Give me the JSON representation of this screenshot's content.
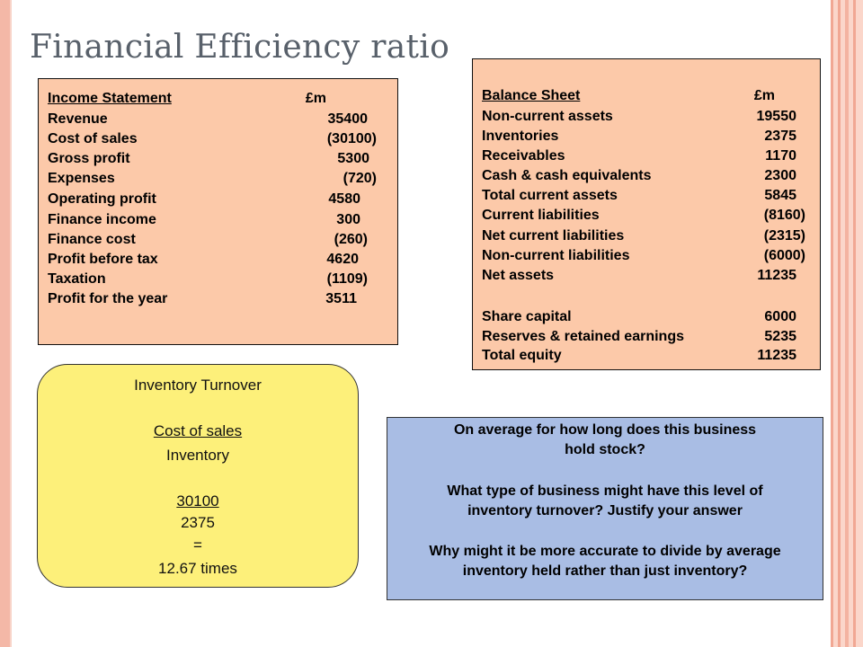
{
  "title": "Financial Efficiency ratio",
  "income_statement": {
    "header": {
      "label": "Income Statement",
      "value": "£m"
    },
    "rows": [
      {
        "label": "Revenue",
        "value": "35400"
      },
      {
        "label": "Cost of sales",
        "value": "(30100)"
      },
      {
        "label": "Gross profit",
        "value": "5300"
      },
      {
        "label": "Expenses",
        "value": "(720)"
      },
      {
        "label": "Operating profit",
        "value": "4580"
      },
      {
        "label": "Finance income",
        "value": "300"
      },
      {
        "label": "Finance cost",
        "value": "(260)"
      },
      {
        "label": "Profit before tax",
        "value": "4620"
      },
      {
        "label": "Taxation",
        "value": "(1109)"
      },
      {
        "label": "Profit for the year",
        "value": "3511"
      }
    ]
  },
  "balance_sheet": {
    "header": {
      "label": "Balance Sheet",
      "value": "£m"
    },
    "rows": [
      {
        "label": "Non-current assets",
        "value": "19550"
      },
      {
        "label": "Inventories",
        "value": "2375"
      },
      {
        "label": "Receivables",
        "value": "1170"
      },
      {
        "label": "Cash & cash equivalents",
        "value": "2300"
      },
      {
        "label": "Total current assets",
        "value": "5845"
      },
      {
        "label": "Current liabilities",
        "value": "(8160)"
      },
      {
        "label": "Net current liabilities",
        "value": "(2315)"
      },
      {
        "label": "Non-current liabilities",
        "value": "(6000)"
      },
      {
        "label": "Net assets",
        "value": "11235"
      }
    ],
    "equity_rows": [
      {
        "label": "Share capital",
        "value": "6000"
      },
      {
        "label": "Reserves & retained earnings",
        "value": "5235"
      },
      {
        "label": "Total equity",
        "value": "11235"
      }
    ]
  },
  "inventory_turnover": {
    "heading": "Inventory Turnover",
    "numerator_label": "Cost of sales",
    "denominator_label": "Inventory",
    "numerator_value": "30100",
    "denominator_value": "2375",
    "equals": "=",
    "result": "12.67 times"
  },
  "questions": {
    "q1_line1": "On average for how long does this business",
    "q1_line2": "hold stock?",
    "q2_line1": "What type of business might have this level of",
    "q2_line2": "inventory turnover? Justify your answer",
    "q3_line1": "Why might it be more accurate to divide by average",
    "q3_line2": "inventory held rather than just inventory?"
  }
}
